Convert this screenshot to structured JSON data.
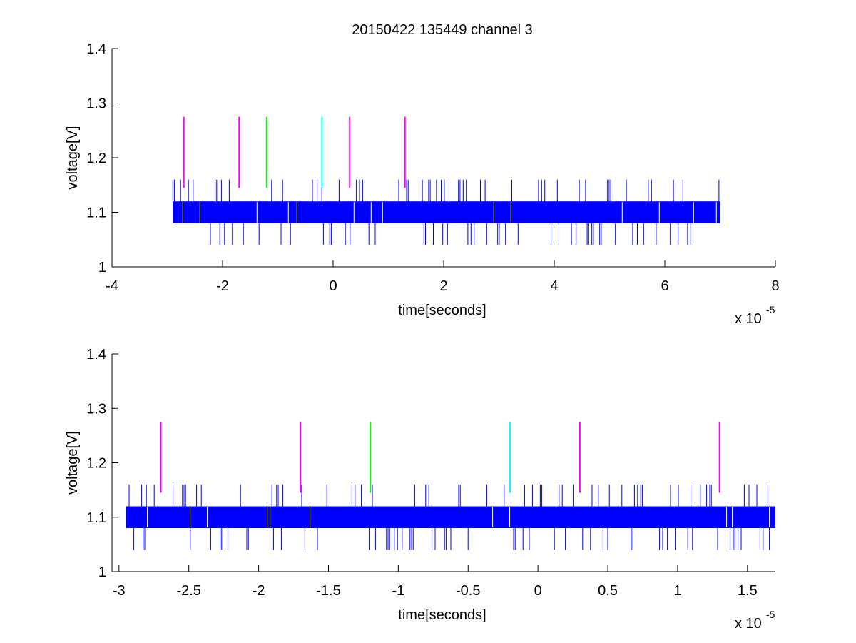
{
  "figure": {
    "title": "20150422 135449 channel 3",
    "background": "#ffffff"
  },
  "chart_data": [
    {
      "type": "line",
      "subplot": "top",
      "xlabel": "time[seconds]",
      "ylabel": "voltage[V]",
      "x_exponent_label": "x 10",
      "x_exponent": "-5",
      "xlim": [
        -4e-05,
        8e-05
      ],
      "ylim": [
        1.0,
        1.4
      ],
      "xticks": [
        -4e-05,
        -2e-05,
        0,
        2e-05,
        4e-05,
        6e-05,
        8e-05
      ],
      "xtick_labels": [
        "-4",
        "-2",
        "0",
        "2",
        "4",
        "6",
        "8"
      ],
      "yticks": [
        1.0,
        1.1,
        1.2,
        1.3,
        1.4
      ],
      "ytick_labels": [
        "1",
        "1.1",
        "1.2",
        "1.3",
        "1.4"
      ],
      "grid": false,
      "legend": "none",
      "series": [
        {
          "kind": "signal",
          "color": "#0000ff",
          "x_range": [
            -2.9e-05,
            7e-05
          ],
          "band": [
            1.08,
            1.12
          ],
          "spike_high": 1.16,
          "spike_low": 1.04
        }
      ],
      "markers": [
        {
          "x": -2.7e-05,
          "y": [
            1.145,
            1.275
          ],
          "color": "#ff00ff"
        },
        {
          "x": -1.7e-05,
          "y": [
            1.145,
            1.275
          ],
          "color": "#ff00ff"
        },
        {
          "x": -1.2e-05,
          "y": [
            1.145,
            1.275
          ],
          "color": "#00ff00"
        },
        {
          "x": -2e-06,
          "y": [
            1.145,
            1.275
          ],
          "color": "#00ffff"
        },
        {
          "x": 3e-06,
          "y": [
            1.145,
            1.275
          ],
          "color": "#ff00ff"
        },
        {
          "x": 1.3e-05,
          "y": [
            1.145,
            1.275
          ],
          "color": "#ff00ff"
        }
      ]
    },
    {
      "type": "line",
      "subplot": "bottom",
      "xlabel": "time[seconds]",
      "ylabel": "voltage[V]",
      "x_exponent_label": "x 10",
      "x_exponent": "-5",
      "xlim": [
        -3.05e-05,
        1.7e-05
      ],
      "ylim": [
        1.0,
        1.4
      ],
      "xticks": [
        -3e-05,
        -2.5e-05,
        -2e-05,
        -1.5e-05,
        -1e-05,
        -5e-06,
        0,
        5e-06,
        1e-05,
        1.5e-05
      ],
      "xtick_labels": [
        "-3",
        "-2.5",
        "-2",
        "-1.5",
        "-1",
        "-0.5",
        "0",
        "0.5",
        "1",
        "1.5"
      ],
      "yticks": [
        1.0,
        1.1,
        1.2,
        1.3,
        1.4
      ],
      "ytick_labels": [
        "1",
        "1.1",
        "1.2",
        "1.3",
        "1.4"
      ],
      "grid": false,
      "legend": "none",
      "series": [
        {
          "kind": "signal",
          "color": "#0000ff",
          "x_range": [
            -2.95e-05,
            1.7e-05
          ],
          "band": [
            1.08,
            1.12
          ],
          "spike_high": 1.16,
          "spike_low": 1.04
        }
      ],
      "markers": [
        {
          "x": -2.7e-05,
          "y": [
            1.145,
            1.275
          ],
          "color": "#ff00ff"
        },
        {
          "x": -1.7e-05,
          "y": [
            1.145,
            1.275
          ],
          "color": "#ff00ff"
        },
        {
          "x": -1.2e-05,
          "y": [
            1.145,
            1.275
          ],
          "color": "#00ff00"
        },
        {
          "x": -2e-06,
          "y": [
            1.145,
            1.275
          ],
          "color": "#00ffff"
        },
        {
          "x": 3e-06,
          "y": [
            1.145,
            1.275
          ],
          "color": "#ff00ff"
        },
        {
          "x": 1.3e-05,
          "y": [
            1.145,
            1.275
          ],
          "color": "#ff00ff"
        }
      ]
    }
  ]
}
